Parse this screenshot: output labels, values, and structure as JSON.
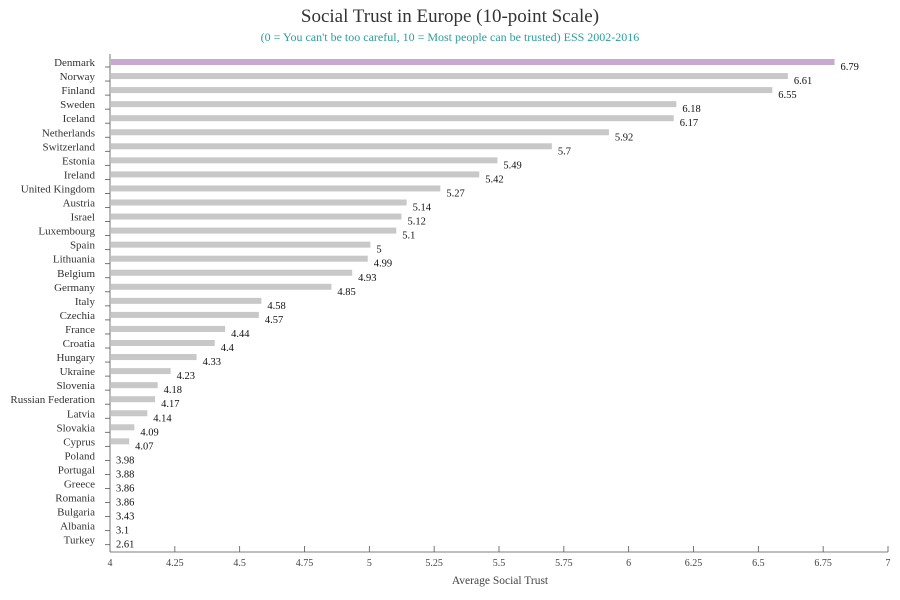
{
  "chart_data": {
    "type": "bar",
    "orientation": "horizontal",
    "title": "Social Trust in Europe (10-point Scale)",
    "subtitle": "(0 = You can't be too careful, 10 = Most people can be trusted) ESS 2002-2016",
    "xlabel": "Average Social Trust",
    "ylabel": "",
    "xlim": [
      4,
      7
    ],
    "xticks": [
      "4",
      "4.25",
      "4.5",
      "4.75",
      "5",
      "5.25",
      "5.5",
      "5.75",
      "6",
      "6.25",
      "6.5",
      "6.75",
      "7"
    ],
    "xtick_values": [
      4,
      4.25,
      4.5,
      4.75,
      5,
      5.25,
      5.5,
      5.75,
      6,
      6.25,
      6.5,
      6.75,
      7
    ],
    "categories": [
      "Denmark",
      "Norway",
      "Finland",
      "Sweden",
      "Iceland",
      "Netherlands",
      "Switzerland",
      "Estonia",
      "Ireland",
      "United Kingdom",
      "Austria",
      "Israel",
      "Luxembourg",
      "Spain",
      "Lithuania",
      "Belgium",
      "Germany",
      "Italy",
      "Czechia",
      "France",
      "Croatia",
      "Hungary",
      "Ukraine",
      "Slovenia",
      "Russian Federation",
      "Latvia",
      "Slovakia",
      "Cyprus",
      "Poland",
      "Portugal",
      "Greece",
      "Romania",
      "Bulgaria",
      "Albania",
      "Turkey"
    ],
    "values": [
      6.79,
      6.61,
      6.55,
      6.18,
      6.17,
      5.92,
      5.7,
      5.49,
      5.42,
      5.27,
      5.14,
      5.12,
      5.1,
      5,
      4.99,
      4.93,
      4.85,
      4.58,
      4.57,
      4.44,
      4.4,
      4.33,
      4.23,
      4.18,
      4.17,
      4.14,
      4.09,
      4.07,
      3.98,
      3.88,
      3.86,
      3.86,
      3.43,
      3.1,
      2.61
    ],
    "value_labels": [
      "6.79",
      "6.61",
      "6.55",
      "6.18",
      "6.17",
      "5.92",
      "5.7",
      "5.49",
      "5.42",
      "5.27",
      "5.14",
      "5.12",
      "5.1",
      "5",
      "4.99",
      "4.93",
      "4.85",
      "4.58",
      "4.57",
      "4.44",
      "4.4",
      "4.33",
      "4.23",
      "4.18",
      "4.17",
      "4.14",
      "4.09",
      "4.07",
      "3.98",
      "3.88",
      "3.86",
      "3.86",
      "3.43",
      "3.1",
      "2.61"
    ],
    "highlight": "Denmark",
    "colors": {
      "bar": "#c8c8c8",
      "highlight": "#c9a8cf",
      "title": "#333333",
      "subtitle": "#2a9d9d",
      "text": "#333333",
      "axis": "#555555"
    },
    "grid": false,
    "legend": "none"
  }
}
